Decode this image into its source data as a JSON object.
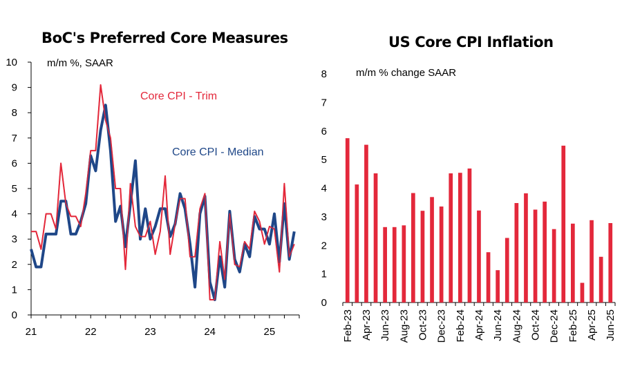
{
  "chart_data": [
    {
      "type": "line",
      "title": "BoC's Preferred Core Measures",
      "subtitle": "m/m %, SAAR",
      "ylim": [
        0,
        10
      ],
      "yticks": [
        0,
        1,
        2,
        3,
        4,
        5,
        6,
        7,
        8,
        9,
        10
      ],
      "xlim": [
        2021.0,
        2025.5
      ],
      "xticks": [
        {
          "label": "21",
          "value": 2021
        },
        {
          "label": "22",
          "value": 2022
        },
        {
          "label": "23",
          "value": 2023
        },
        {
          "label": "24",
          "value": 2024
        },
        {
          "label": "25",
          "value": 2025
        }
      ],
      "series": [
        {
          "name": "Core CPI - Trim",
          "color": "#e3283b",
          "x": [
            2021.0,
            2021.083,
            2021.167,
            2021.25,
            2021.333,
            2021.417,
            2021.5,
            2021.583,
            2021.667,
            2021.75,
            2021.833,
            2021.917,
            2022.0,
            2022.083,
            2022.167,
            2022.25,
            2022.333,
            2022.417,
            2022.5,
            2022.583,
            2022.667,
            2022.75,
            2022.833,
            2022.917,
            2023.0,
            2023.083,
            2023.167,
            2023.25,
            2023.333,
            2023.417,
            2023.5,
            2023.583,
            2023.667,
            2023.75,
            2023.833,
            2023.917,
            2024.0,
            2024.083,
            2024.167,
            2024.25,
            2024.333,
            2024.417,
            2024.5,
            2024.583,
            2024.667,
            2024.75,
            2024.833,
            2024.917,
            2025.0,
            2025.083,
            2025.167,
            2025.25,
            2025.333,
            2025.417
          ],
          "y": [
            3.3,
            3.3,
            2.6,
            4.0,
            4.0,
            3.4,
            6.0,
            4.4,
            3.9,
            3.9,
            3.5,
            4.8,
            6.5,
            6.5,
            9.1,
            7.7,
            7.0,
            5.0,
            5.0,
            1.8,
            5.2,
            3.5,
            3.1,
            3.1,
            3.7,
            2.4,
            3.3,
            5.5,
            2.4,
            3.6,
            4.6,
            4.6,
            2.3,
            2.3,
            4.2,
            4.8,
            0.6,
            0.6,
            2.9,
            1.4,
            4.0,
            2.0,
            1.9,
            2.9,
            2.6,
            4.1,
            3.7,
            2.8,
            3.5,
            3.4,
            1.7,
            5.2,
            2.3,
            2.8
          ]
        },
        {
          "name": "Core CPI - Median",
          "color": "#1f4788",
          "x": [
            2021.0,
            2021.083,
            2021.167,
            2021.25,
            2021.333,
            2021.417,
            2021.5,
            2021.583,
            2021.667,
            2021.75,
            2021.833,
            2021.917,
            2022.0,
            2022.083,
            2022.167,
            2022.25,
            2022.333,
            2022.417,
            2022.5,
            2022.583,
            2022.667,
            2022.75,
            2022.833,
            2022.917,
            2023.0,
            2023.083,
            2023.167,
            2023.25,
            2023.333,
            2023.417,
            2023.5,
            2023.583,
            2023.667,
            2023.75,
            2023.833,
            2023.917,
            2024.0,
            2024.083,
            2024.167,
            2024.25,
            2024.333,
            2024.417,
            2024.5,
            2024.583,
            2024.667,
            2024.75,
            2024.833,
            2024.917,
            2025.0,
            2025.083,
            2025.167,
            2025.25,
            2025.333,
            2025.417
          ],
          "y": [
            2.6,
            1.9,
            1.9,
            3.2,
            3.2,
            3.2,
            4.5,
            4.5,
            3.2,
            3.2,
            3.7,
            4.4,
            6.3,
            5.7,
            7.3,
            8.3,
            6.5,
            3.7,
            4.3,
            2.7,
            4.4,
            6.1,
            3.0,
            4.2,
            3.0,
            3.5,
            4.2,
            4.2,
            3.1,
            3.6,
            4.8,
            4.2,
            2.8,
            1.1,
            4.0,
            4.7,
            1.3,
            0.6,
            2.3,
            1.1,
            4.1,
            2.2,
            1.7,
            2.8,
            2.3,
            3.9,
            3.4,
            3.4,
            2.8,
            4.0,
            2.1,
            4.4,
            2.2,
            3.3
          ]
        }
      ],
      "annotations": [
        "Core CPI - Trim",
        "Core CPI - Median"
      ]
    },
    {
      "type": "bar",
      "title": "US Core CPI Inflation",
      "subtitle": "m/m % change SAAR",
      "ylim": [
        0,
        8
      ],
      "yticks": [
        0,
        1,
        2,
        3,
        4,
        5,
        6,
        7,
        8
      ],
      "categories": [
        "Feb-23",
        "Mar-23",
        "Apr-23",
        "May-23",
        "Jun-23",
        "Jul-23",
        "Aug-23",
        "Sep-23",
        "Oct-23",
        "Nov-23",
        "Dec-23",
        "Jan-24",
        "Feb-24",
        "Mar-24",
        "Apr-24",
        "May-24",
        "Jun-24",
        "Jul-24",
        "Aug-24",
        "Sep-24",
        "Oct-24",
        "Nov-24",
        "Dec-24",
        "Jan-25",
        "Feb-25",
        "Mar-25",
        "Apr-25",
        "May-25",
        "Jun-25"
      ],
      "tick_labels": [
        "Feb-23",
        "Apr-23",
        "Jun-23",
        "Aug-23",
        "Oct-23",
        "Dec-23",
        "Feb-24",
        "Apr-24",
        "Jun-24",
        "Aug-24",
        "Oct-24",
        "Dec-24",
        "Feb-25",
        "Apr-25",
        "Jun-25"
      ],
      "values": [
        5.75,
        4.13,
        5.52,
        4.52,
        2.64,
        2.64,
        2.7,
        3.83,
        3.21,
        3.69,
        3.36,
        4.52,
        4.54,
        4.69,
        3.22,
        1.76,
        1.13,
        2.26,
        3.48,
        3.82,
        3.25,
        3.53,
        2.57,
        5.49,
        2.76,
        0.69,
        2.88,
        1.6,
        2.78
      ],
      "color": "#e3283b"
    }
  ]
}
